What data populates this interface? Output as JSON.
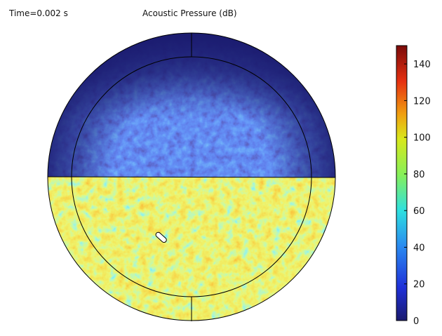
{
  "chart_data": {
    "type": "heatmap",
    "title": "Acoustic Pressure (dB)",
    "time_label": "Time=0.002 s",
    "colorbar": {
      "range": [
        0,
        150
      ],
      "ticks": [
        0,
        20,
        40,
        60,
        80,
        100,
        120,
        140
      ],
      "tick_labels": [
        "0",
        "20",
        "40",
        "60",
        "80",
        "100",
        "120",
        "140"
      ],
      "colormap": [
        "#1a1a6e",
        "#1f30d8",
        "#2a8af0",
        "#2ee0e0",
        "#86f05a",
        "#d8e81c",
        "#f0a010",
        "#e63010",
        "#7a0a0a"
      ]
    },
    "regions": [
      {
        "name": "upper-half",
        "approx_level_db": [
          5,
          35
        ]
      },
      {
        "name": "lower-half",
        "approx_level_db": [
          60,
          115
        ]
      }
    ]
  }
}
